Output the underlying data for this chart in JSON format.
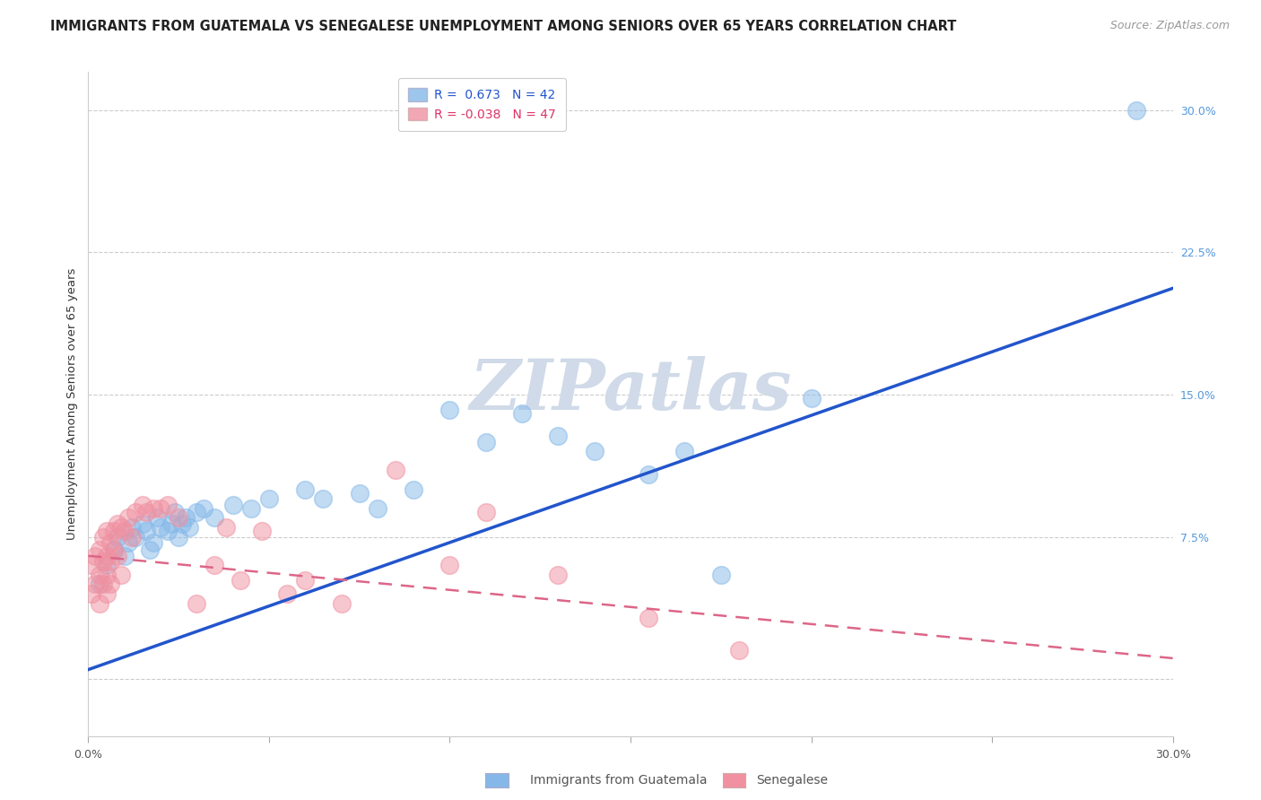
{
  "title": "IMMIGRANTS FROM GUATEMALA VS SENEGALESE UNEMPLOYMENT AMONG SENIORS OVER 65 YEARS CORRELATION CHART",
  "source": "Source: ZipAtlas.com",
  "ylabel": "Unemployment Among Seniors over 65 years",
  "legend_blue_label": "Immigrants from Guatemala",
  "legend_pink_label": "Senegalese",
  "R_blue": 0.673,
  "N_blue": 42,
  "R_pink": -0.038,
  "N_pink": 47,
  "xlim": [
    0.0,
    0.3
  ],
  "ylim": [
    -0.03,
    0.32
  ],
  "ytick_right_values": [
    0.0,
    0.075,
    0.15,
    0.225,
    0.3
  ],
  "ytick_right_labels": [
    "",
    "7.5%",
    "15.0%",
    "22.5%",
    "30.0%"
  ],
  "grid_color": "#cccccc",
  "bg_color": "#ffffff",
  "blue_color": "#85b8e8",
  "pink_color": "#f090a0",
  "blue_line_color": "#2255cc",
  "pink_line_color": "#dd6688",
  "watermark_color": "#d0dae8",
  "blue_scatter_x": [
    0.003,
    0.005,
    0.007,
    0.008,
    0.01,
    0.011,
    0.012,
    0.013,
    0.015,
    0.016,
    0.017,
    0.018,
    0.019,
    0.02,
    0.022,
    0.023,
    0.024,
    0.025,
    0.026,
    0.027,
    0.028,
    0.03,
    0.032,
    0.035,
    0.04,
    0.045,
    0.05,
    0.06,
    0.065,
    0.075,
    0.08,
    0.09,
    0.1,
    0.11,
    0.12,
    0.13,
    0.14,
    0.155,
    0.165,
    0.175,
    0.2,
    0.29
  ],
  "blue_scatter_y": [
    0.05,
    0.06,
    0.068,
    0.075,
    0.065,
    0.072,
    0.08,
    0.075,
    0.082,
    0.078,
    0.068,
    0.072,
    0.085,
    0.08,
    0.078,
    0.082,
    0.088,
    0.075,
    0.082,
    0.085,
    0.08,
    0.088,
    0.09,
    0.085,
    0.092,
    0.09,
    0.095,
    0.1,
    0.095,
    0.098,
    0.09,
    0.1,
    0.142,
    0.125,
    0.14,
    0.128,
    0.12,
    0.108,
    0.12,
    0.055,
    0.148,
    0.3
  ],
  "pink_scatter_x": [
    0.001,
    0.001,
    0.002,
    0.002,
    0.003,
    0.003,
    0.003,
    0.004,
    0.004,
    0.004,
    0.005,
    0.005,
    0.005,
    0.005,
    0.006,
    0.006,
    0.006,
    0.007,
    0.007,
    0.008,
    0.008,
    0.009,
    0.009,
    0.01,
    0.011,
    0.012,
    0.013,
    0.015,
    0.016,
    0.018,
    0.02,
    0.022,
    0.025,
    0.03,
    0.035,
    0.038,
    0.042,
    0.048,
    0.055,
    0.06,
    0.07,
    0.085,
    0.1,
    0.11,
    0.13,
    0.155,
    0.18
  ],
  "pink_scatter_y": [
    0.06,
    0.045,
    0.065,
    0.05,
    0.068,
    0.055,
    0.04,
    0.075,
    0.062,
    0.05,
    0.078,
    0.065,
    0.055,
    0.045,
    0.072,
    0.062,
    0.05,
    0.078,
    0.068,
    0.082,
    0.065,
    0.08,
    0.055,
    0.078,
    0.085,
    0.075,
    0.088,
    0.092,
    0.088,
    0.09,
    0.09,
    0.092,
    0.085,
    0.04,
    0.06,
    0.08,
    0.052,
    0.078,
    0.045,
    0.052,
    0.04,
    0.11,
    0.06,
    0.088,
    0.055,
    0.032,
    0.015
  ],
  "title_fontsize": 10.5,
  "source_fontsize": 9,
  "axis_label_fontsize": 9.5,
  "tick_fontsize": 9,
  "legend_fontsize": 10,
  "watermark_fontsize": 56
}
